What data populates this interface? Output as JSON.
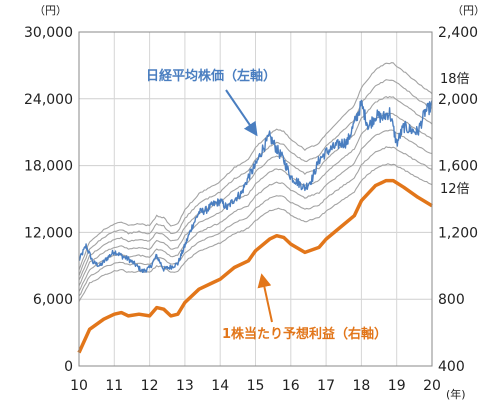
{
  "chart_data": {
    "type": "line",
    "units": {
      "left": "（円）",
      "right": "（円）",
      "x": "(年)"
    },
    "x_tick_labels": [
      "10",
      "11",
      "12",
      "13",
      "14",
      "15",
      "16",
      "17",
      "18",
      "19",
      "20"
    ],
    "x_range": [
      2010,
      2020
    ],
    "left_axis": {
      "ylim": [
        0,
        30000
      ],
      "tick_labels": [
        "0",
        "6,000",
        "12,000",
        "18,000",
        "24,000",
        "30,000"
      ]
    },
    "right_axis": {
      "ylim": [
        400,
        2400
      ],
      "tick_labels": [
        "400",
        "800",
        "1,200",
        "1,600",
        "2,000",
        "2,400"
      ]
    },
    "grid": true,
    "annotations": {
      "nikkei": "日経平均株価（左軸）",
      "eps": "1株当たり予想利益（右軸）",
      "mult_high": "18倍",
      "mult_low": "12倍"
    },
    "pe_multiples": [
      12,
      13,
      14,
      15,
      16,
      17,
      18
    ],
    "series": [
      {
        "name": "日経平均株価（左軸）",
        "axis": "left",
        "color": "#4a7ec0",
        "points": [
          [
            2010.0,
            9500
          ],
          [
            2010.2,
            10800
          ],
          [
            2010.4,
            9300
          ],
          [
            2010.6,
            9000
          ],
          [
            2010.8,
            9700
          ],
          [
            2011.0,
            10300
          ],
          [
            2011.2,
            9900
          ],
          [
            2011.4,
            9600
          ],
          [
            2011.6,
            9100
          ],
          [
            2011.8,
            8500
          ],
          [
            2012.0,
            8800
          ],
          [
            2012.2,
            9900
          ],
          [
            2012.4,
            8700
          ],
          [
            2012.6,
            8900
          ],
          [
            2012.8,
            9200
          ],
          [
            2013.0,
            10800
          ],
          [
            2013.2,
            12500
          ],
          [
            2013.4,
            13800
          ],
          [
            2013.6,
            14000
          ],
          [
            2013.8,
            14500
          ],
          [
            2014.0,
            14800
          ],
          [
            2014.2,
            14200
          ],
          [
            2014.4,
            15000
          ],
          [
            2014.6,
            15500
          ],
          [
            2014.8,
            17000
          ],
          [
            2015.0,
            18000
          ],
          [
            2015.2,
            19500
          ],
          [
            2015.4,
            20600
          ],
          [
            2015.6,
            19500
          ],
          [
            2015.8,
            18500
          ],
          [
            2016.0,
            17000
          ],
          [
            2016.2,
            16500
          ],
          [
            2016.4,
            16000
          ],
          [
            2016.6,
            16800
          ],
          [
            2016.8,
            18500
          ],
          [
            2017.0,
            19200
          ],
          [
            2017.2,
            19600
          ],
          [
            2017.4,
            20000
          ],
          [
            2017.6,
            20100
          ],
          [
            2017.8,
            21800
          ],
          [
            2018.0,
            23500
          ],
          [
            2018.2,
            21500
          ],
          [
            2018.4,
            22500
          ],
          [
            2018.6,
            22300
          ],
          [
            2018.8,
            22800
          ],
          [
            2019.0,
            20000
          ],
          [
            2019.2,
            21500
          ],
          [
            2019.4,
            21200
          ],
          [
            2019.6,
            21000
          ],
          [
            2019.8,
            22800
          ],
          [
            2020.0,
            23400
          ]
        ]
      },
      {
        "name": "1株当たり予想利益（右軸）",
        "axis": "right",
        "color": "#e2761a",
        "points": [
          [
            2010.0,
            480
          ],
          [
            2010.3,
            620
          ],
          [
            2010.7,
            680
          ],
          [
            2011.0,
            710
          ],
          [
            2011.2,
            720
          ],
          [
            2011.4,
            700
          ],
          [
            2011.7,
            710
          ],
          [
            2012.0,
            700
          ],
          [
            2012.2,
            750
          ],
          [
            2012.4,
            740
          ],
          [
            2012.6,
            700
          ],
          [
            2012.8,
            710
          ],
          [
            2013.0,
            780
          ],
          [
            2013.4,
            860
          ],
          [
            2013.8,
            900
          ],
          [
            2014.0,
            920
          ],
          [
            2014.4,
            990
          ],
          [
            2014.8,
            1030
          ],
          [
            2015.0,
            1090
          ],
          [
            2015.4,
            1160
          ],
          [
            2015.6,
            1180
          ],
          [
            2015.8,
            1170
          ],
          [
            2016.0,
            1130
          ],
          [
            2016.4,
            1080
          ],
          [
            2016.8,
            1110
          ],
          [
            2017.0,
            1160
          ],
          [
            2017.4,
            1230
          ],
          [
            2017.8,
            1300
          ],
          [
            2018.0,
            1390
          ],
          [
            2018.4,
            1480
          ],
          [
            2018.7,
            1510
          ],
          [
            2018.9,
            1510
          ],
          [
            2019.2,
            1470
          ],
          [
            2019.6,
            1410
          ],
          [
            2020.0,
            1360
          ]
        ]
      }
    ]
  }
}
